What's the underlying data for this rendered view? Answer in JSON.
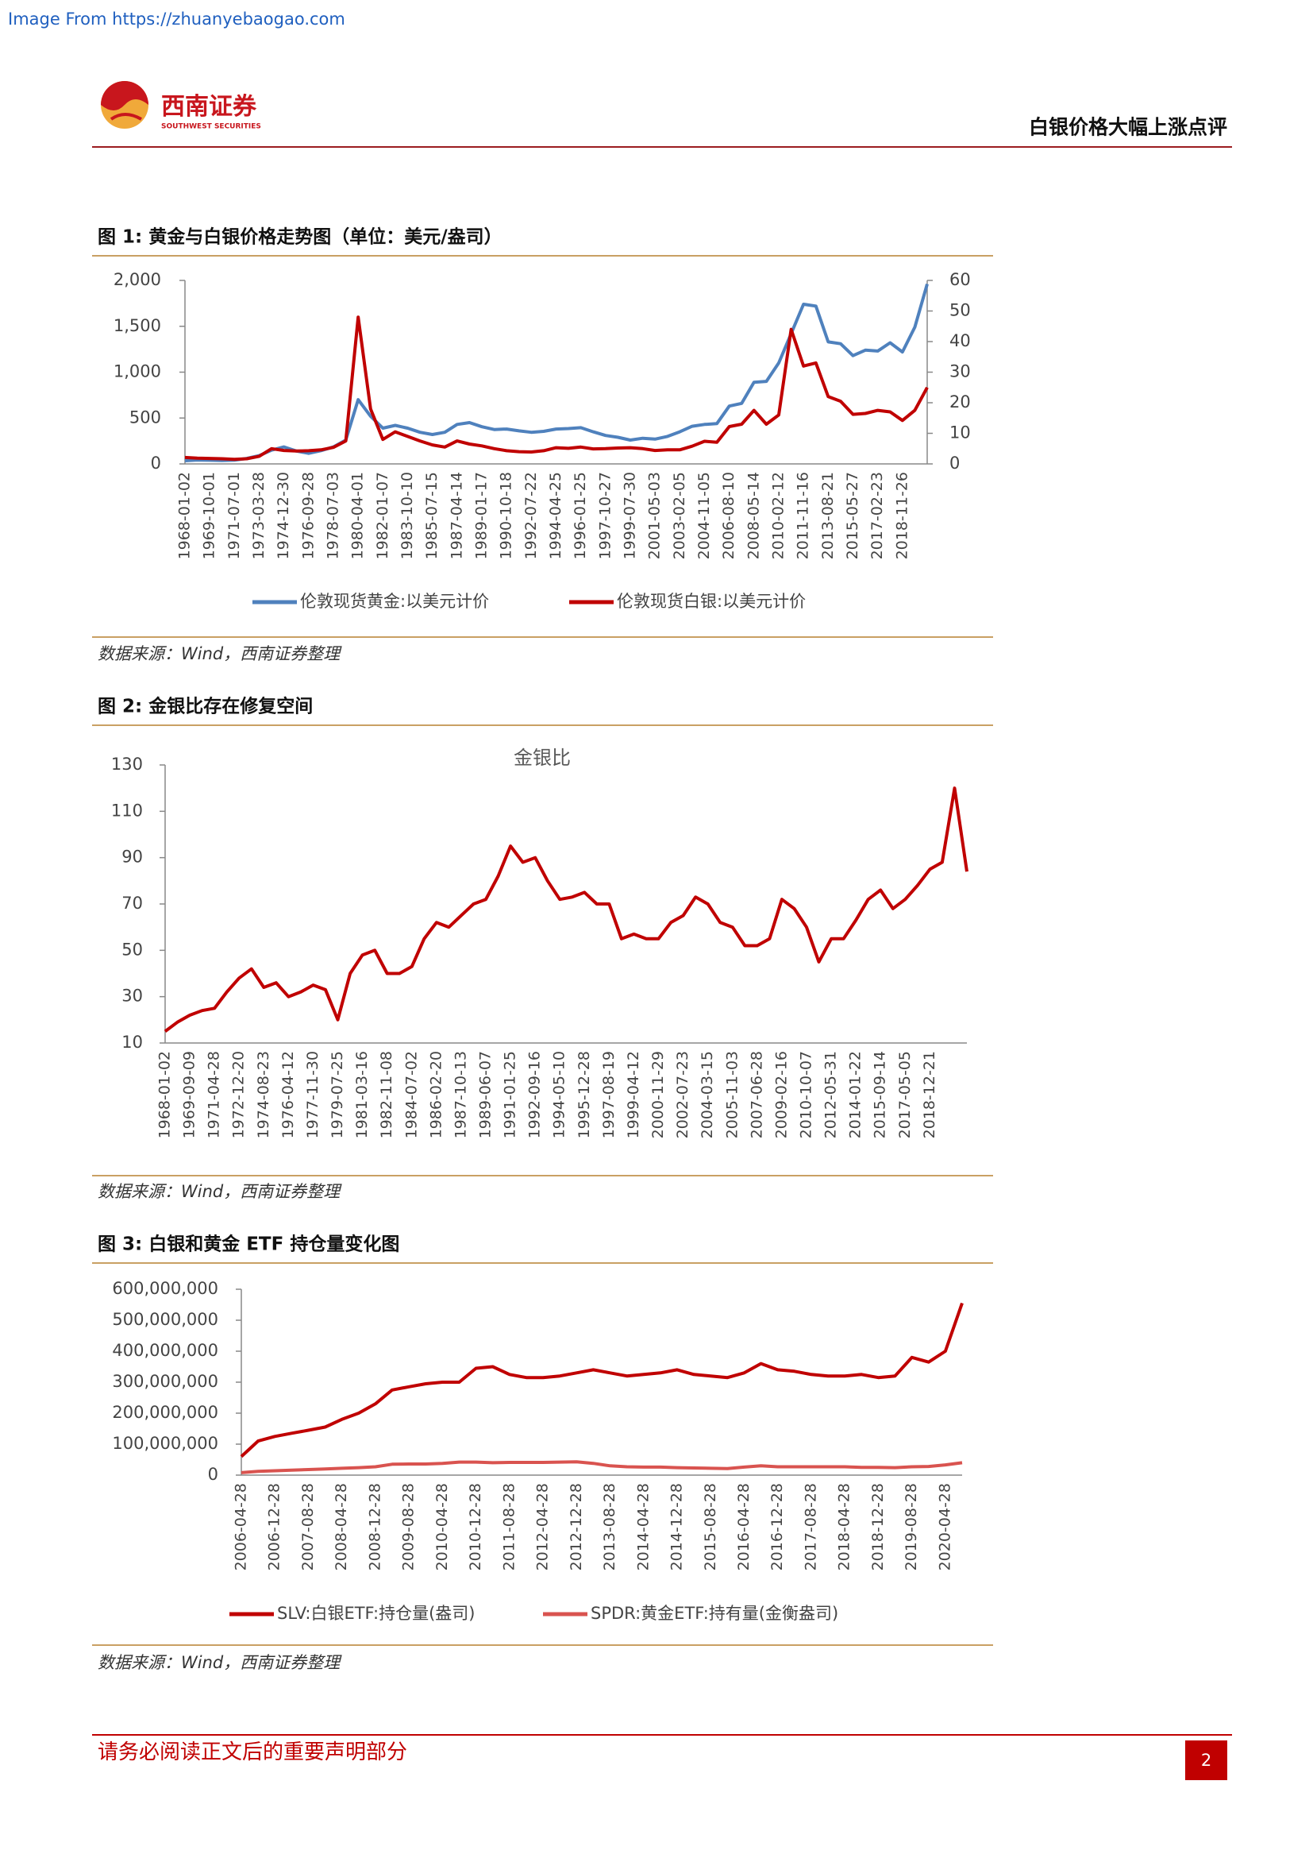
{
  "watermark": "Image From https://zhuanyebaogao.com",
  "header": {
    "logo_cn": "西南证券",
    "logo_en": "SOUTHWEST SECURITIES",
    "report_title": "白银价格大幅上涨点评"
  },
  "figures": [
    {
      "caption": "图 1: 黄金与白银价格走势图（单位：美元/盎司）",
      "source": "数据来源：Wind，西南证券整理"
    },
    {
      "caption": "图 2: 金银比存在修复空间",
      "source": "数据来源：Wind，西南证券整理"
    },
    {
      "caption": "图 3: 白银和黄金 ETF 持仓量变化图",
      "source": "数据来源：Wind，西南证券整理"
    }
  ],
  "chart_data": [
    {
      "type": "line",
      "categories": [
        "1968-01-02",
        null,
        "1969-10-01",
        null,
        "1971-07-01",
        null,
        "1973-03-28",
        null,
        "1974-12-30",
        null,
        "1976-09-28",
        null,
        "1978-07-03",
        null,
        "1980-04-01",
        null,
        "1982-01-07",
        null,
        "1983-10-10",
        null,
        "1985-07-15",
        null,
        "1987-04-14",
        null,
        "1989-01-17",
        null,
        "1990-10-18",
        null,
        "1992-07-22",
        null,
        "1994-04-25",
        null,
        "1996-01-25",
        null,
        "1997-10-27",
        null,
        "1999-07-30",
        null,
        "2001-05-03",
        null,
        "2003-02-05",
        null,
        "2004-11-05",
        null,
        "2006-08-10",
        null,
        "2008-05-14",
        null,
        "2010-02-12",
        null,
        "2011-11-16",
        null,
        "2013-08-21",
        null,
        "2015-05-27",
        null,
        "2017-02-23",
        null,
        "2018-11-26",
        null,
        null
      ],
      "series": [
        {
          "name": "伦敦现货黄金:以美元计价",
          "color": "#4f81bd",
          "values": [
            35,
            42,
            40,
            36,
            41,
            60,
            90,
            150,
            185,
            140,
            115,
            145,
            185,
            260,
            700,
            520,
            390,
            420,
            390,
            345,
            320,
            345,
            430,
            450,
            405,
            375,
            380,
            360,
            345,
            355,
            380,
            385,
            395,
            350,
            310,
            290,
            260,
            280,
            270,
            300,
            350,
            410,
            430,
            440,
            630,
            660,
            890,
            900,
            1100,
            1420,
            1740,
            1720,
            1330,
            1310,
            1180,
            1240,
            1230,
            1320,
            1220,
            1490,
            1960
          ]
        },
        {
          "name": "伦敦现货白银:以美元计价",
          "color": "#c00000",
          "axis": "y2",
          "values": [
            2.1,
            1.9,
            1.8,
            1.7,
            1.5,
            1.7,
            2.5,
            5,
            4.4,
            4.2,
            4.3,
            4.6,
            5.4,
            7.5,
            48,
            18,
            8,
            10.5,
            9,
            7.5,
            6.2,
            5.5,
            7.5,
            6.5,
            5.9,
            5,
            4.3,
            4,
            3.9,
            4.3,
            5.3,
            5.1,
            5.5,
            4.9,
            5,
            5.2,
            5.3,
            5,
            4.4,
            4.6,
            4.6,
            5.8,
            7.4,
            7.1,
            12.2,
            13,
            17.5,
            13,
            16,
            44,
            32,
            33,
            22,
            20.5,
            16.2,
            16.5,
            17.5,
            17,
            14.2,
            17.5,
            25
          ]
        }
      ],
      "ylim": [
        0,
        2000
      ],
      "yticks": [
        0,
        500,
        {
          "value": 1000,
          "label": "1,000"
        },
        {
          "value": 1500,
          "label": "1,500"
        },
        {
          "value": 2000,
          "label": "2,000"
        }
      ],
      "y2lim": [
        0,
        60
      ],
      "y2ticks": [
        0,
        10,
        20,
        30,
        40,
        50,
        60
      ],
      "legend": "bottom"
    },
    {
      "type": "line",
      "title": "金银比",
      "color": "#c00000",
      "categories": [
        "1968-01-02",
        null,
        "1969-09-09",
        null,
        "1971-04-28",
        null,
        "1972-12-20",
        null,
        "1974-08-23",
        null,
        "1976-04-12",
        null,
        "1977-11-30",
        null,
        "1979-07-25",
        null,
        "1981-03-16",
        null,
        "1982-11-08",
        null,
        "1984-07-02",
        null,
        "1986-02-20",
        null,
        "1987-10-13",
        null,
        "1989-06-07",
        null,
        "1991-01-25",
        null,
        "1992-09-16",
        null,
        "1994-05-10",
        null,
        "1995-12-28",
        null,
        "1997-08-19",
        null,
        "1999-04-12",
        null,
        "2000-11-29",
        null,
        "2002-07-23",
        null,
        "2004-03-15",
        null,
        "2005-11-03",
        null,
        "2007-06-28",
        null,
        "2009-02-16",
        null,
        "2010-10-07",
        null,
        "2012-05-31",
        null,
        "2014-01-22",
        null,
        "2015-09-14",
        null,
        "2017-05-05",
        null,
        "2018-12-21",
        null,
        null,
        null
      ],
      "values": [
        15,
        19,
        22,
        24,
        25,
        32,
        38,
        42,
        34,
        36,
        30,
        32,
        35,
        33,
        20,
        40,
        48,
        50,
        40,
        40,
        43,
        55,
        62,
        60,
        65,
        70,
        72,
        82,
        95,
        88,
        90,
        80,
        72,
        73,
        75,
        70,
        70,
        55,
        57,
        55,
        55,
        62,
        65,
        73,
        70,
        62,
        60,
        52,
        52,
        55,
        72,
        68,
        60,
        45,
        55,
        55,
        63,
        72,
        76,
        68,
        72,
        78,
        85,
        88,
        120,
        84
      ],
      "ylim": [
        10,
        130
      ],
      "yticks": [
        10,
        30,
        50,
        70,
        90,
        110,
        130
      ]
    },
    {
      "type": "line",
      "categories": [
        "2006-04-28",
        null,
        "2006-12-28",
        null,
        "2007-08-28",
        null,
        "2008-04-28",
        null,
        "2008-12-28",
        null,
        "2009-08-28",
        null,
        "2010-04-28",
        null,
        "2010-12-28",
        null,
        "2011-08-28",
        null,
        "2012-04-28",
        null,
        "2012-12-28",
        null,
        "2013-08-28",
        null,
        "2014-04-28",
        null,
        "2014-12-28",
        null,
        "2015-08-28",
        null,
        "2016-04-28",
        null,
        "2016-12-28",
        null,
        "2017-08-28",
        null,
        "2018-04-28",
        null,
        "2018-12-28",
        null,
        "2019-08-28",
        null,
        "2020-04-28",
        null
      ],
      "series": [
        {
          "name": "SLV:白银ETF:持仓量(盎司)",
          "color": "#c00000",
          "values": [
            60000000,
            110000000,
            125000000,
            135000000,
            145000000,
            155000000,
            180000000,
            200000000,
            230000000,
            275000000,
            285000000,
            295000000,
            300000000,
            300000000,
            345000000,
            350000000,
            325000000,
            315000000,
            315000000,
            320000000,
            330000000,
            340000000,
            330000000,
            320000000,
            325000000,
            330000000,
            340000000,
            325000000,
            320000000,
            315000000,
            330000000,
            360000000,
            340000000,
            335000000,
            325000000,
            320000000,
            320000000,
            325000000,
            315000000,
            320000000,
            380000000,
            365000000,
            400000000,
            555000000
          ]
        },
        {
          "name": "SPDR:黄金ETF:持有量(金衡盎司)",
          "color": "#d9534f",
          "values": [
            8000000,
            12000000,
            14000000,
            16000000,
            18000000,
            20000000,
            22000000,
            24000000,
            27000000,
            35000000,
            36000000,
            36000000,
            38000000,
            42000000,
            42000000,
            40000000,
            41000000,
            41000000,
            41000000,
            42000000,
            43000000,
            38000000,
            30000000,
            27000000,
            26000000,
            26000000,
            24000000,
            23000000,
            22000000,
            21000000,
            26000000,
            30000000,
            27000000,
            27000000,
            27000000,
            27000000,
            27000000,
            25000000,
            25000000,
            24000000,
            27000000,
            28000000,
            33000000,
            40000000
          ]
        }
      ],
      "ylim": [
        0,
        600000000
      ],
      "yticks": [
        0,
        {
          "value": 100000000,
          "label": "100,000,000"
        },
        {
          "value": 200000000,
          "label": "200,000,000"
        },
        {
          "value": 300000000,
          "label": "300,000,000"
        },
        {
          "value": 400000000,
          "label": "400,000,000"
        },
        {
          "value": 500000000,
          "label": "500,000,000"
        },
        {
          "value": 600000000,
          "label": "600,000,000"
        }
      ],
      "legend": "bottom"
    }
  ],
  "footer": {
    "disclaimer": "请务必阅读正文后的重要声明部分",
    "page": 2
  }
}
